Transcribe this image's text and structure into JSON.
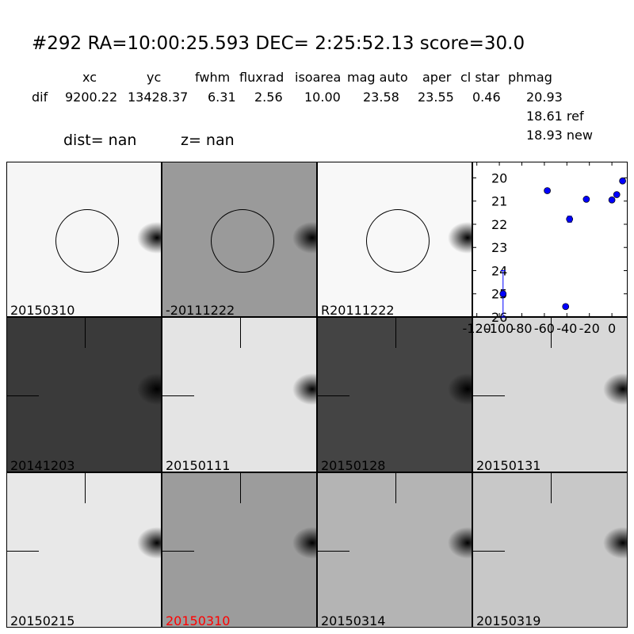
{
  "header": {
    "title": "#292   RA=10:00:25.593 DEC= 2:25:52.13      score=30.0",
    "columns": [
      "xc",
      "yc",
      "fwhm",
      "fluxrad",
      "isoarea",
      "mag auto",
      "aper",
      "cl star",
      "phmag"
    ],
    "row_label": "dif",
    "values": [
      "9200.22",
      "13428.37",
      "6.31",
      "2.56",
      "10.00",
      "23.58",
      "23.55",
      "0.46",
      "20.93"
    ],
    "ref": "18.61 ref",
    "new": "18.93 new",
    "dist": "dist=   nan",
    "z": "z=   nan"
  },
  "panels": [
    {
      "label": "20150310",
      "bg": "#f6f6f6",
      "circle": true,
      "color": "#000"
    },
    {
      "label": "-20111222",
      "bg": "#9a9a9a",
      "circle": true,
      "color": "#000"
    },
    {
      "label": "R20111222",
      "bg": "#f8f8f8",
      "circle": true,
      "color": "#000"
    },
    {
      "label": "20141203",
      "bg": "#3a3a3a",
      "circle": false,
      "color": "#000"
    },
    {
      "label": "20150111",
      "bg": "#e4e4e4",
      "circle": false,
      "color": "#000"
    },
    {
      "label": "20150128",
      "bg": "#444444",
      "circle": false,
      "color": "#000"
    },
    {
      "label": "20150131",
      "bg": "#d8d8d8",
      "circle": false,
      "color": "#000"
    },
    {
      "label": "20150215",
      "bg": "#e8e8e8",
      "circle": false,
      "color": "#000"
    },
    {
      "label": "20150310",
      "bg": "#9c9c9c",
      "circle": false,
      "color": "#ff0000"
    },
    {
      "label": "20150314",
      "bg": "#b4b4b4",
      "circle": false,
      "color": "#000"
    },
    {
      "label": "20150319",
      "bg": "#c8c8c8",
      "circle": false,
      "color": "#000"
    }
  ],
  "chart_data": {
    "type": "scatter",
    "xlim": [
      -124,
      14
    ],
    "ylim": [
      26,
      19.3
    ],
    "y_inverted": true,
    "xticks": [
      -120,
      -100,
      -80,
      -60,
      -40,
      -20,
      0
    ],
    "yticks": [
      20,
      21,
      22,
      23,
      24,
      25,
      26
    ],
    "marker_color": "#0000ff",
    "points": [
      {
        "x": -96.7,
        "y": 25.0,
        "err_lo": 1.0,
        "err_hi": 1.0
      },
      {
        "x": -57.4,
        "y": 20.55
      },
      {
        "x": -37.6,
        "y": 21.78,
        "err_lo": 0.13,
        "err_hi": 0.13
      },
      {
        "x": -41.1,
        "y": 25.55,
        "err_lo": 0.08,
        "err_hi": 0.08
      },
      {
        "x": -22.7,
        "y": 20.92
      },
      {
        "x": 0,
        "y": 20.95
      },
      {
        "x": 4.3,
        "y": 20.72
      },
      {
        "x": 9.5,
        "y": 20.13
      }
    ]
  }
}
